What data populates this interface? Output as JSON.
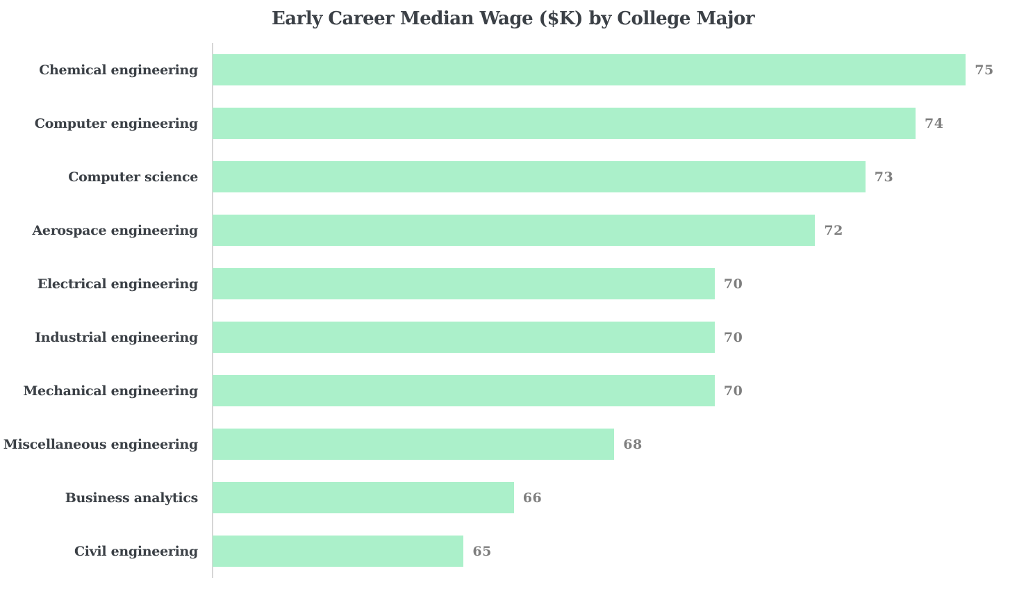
{
  "chart_data": {
    "type": "bar",
    "orientation": "horizontal",
    "title": "Early Career Median Wage ($K) by College Major",
    "categories": [
      "Chemical engineering",
      "Computer engineering",
      "Computer science",
      "Aerospace engineering",
      "Electrical engineering",
      "Industrial engineering",
      "Mechanical engineering",
      "Miscellaneous engineering",
      "Business analytics",
      "Civil engineering"
    ],
    "values": [
      75,
      74,
      73,
      72,
      70,
      70,
      70,
      68,
      66,
      65
    ],
    "xlabel": "",
    "ylabel": "",
    "xlim": [
      60,
      76.2
    ],
    "grid": false,
    "legend": false,
    "data_labels_shown": true,
    "colors": {
      "bar": "#abf0ca",
      "category_label": "#3b4046",
      "value_label": "#7e7e7e",
      "title": "#3b4046",
      "axis_spine": "#d6d6d6",
      "background": "#ffffff"
    }
  }
}
